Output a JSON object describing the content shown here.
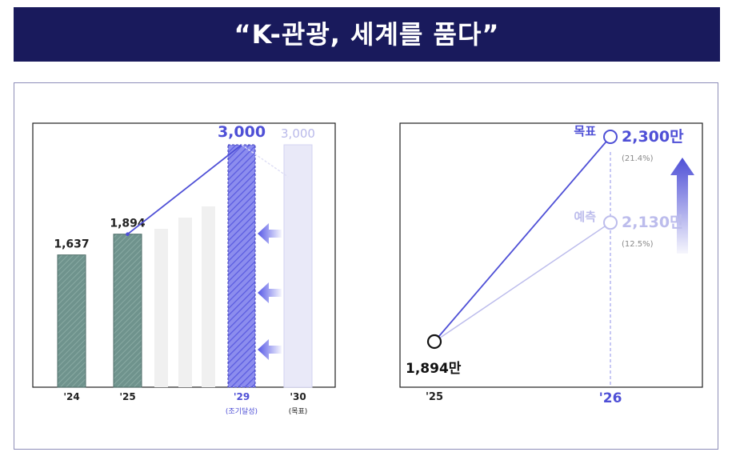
{
  "banner": {
    "title": "“K-관광, 세계를 품다”"
  },
  "colors": {
    "navy": "#191a5c",
    "accent": "#4e4fd6",
    "actual_bar": "#6f938d",
    "projection_bar": "#f0f0f0",
    "target_bar": "#e9e9f8",
    "forecast": "#bcbcec",
    "arrow": "#5557e6"
  },
  "chart_data": [
    {
      "type": "bar",
      "categories": [
        "'24",
        "'25",
        "",
        "",
        "",
        "'29",
        "'30"
      ],
      "category_notes": {
        "'29": "(조기달성)",
        "'30": "(목표)"
      },
      "values": [
        1637,
        1894,
        null,
        null,
        null,
        3000,
        3000
      ],
      "value_labels": [
        "1,637",
        "1,894",
        "",
        "",
        "",
        "3,000",
        "3,000"
      ],
      "intermediate_projection_bars": "unlabeled bars between '25 and '29",
      "trend_line": {
        "from": "'25",
        "to": "'29"
      },
      "ylim": [
        0,
        3400
      ],
      "legend": "none",
      "grid": false
    },
    {
      "type": "line",
      "x": [
        "'25",
        "'26"
      ],
      "series": [
        {
          "name": "목표",
          "values": [
            1894,
            2300
          ],
          "end_label": "2,300만",
          "share": "(21.4%)"
        },
        {
          "name": "예측",
          "values": [
            1894,
            2130
          ],
          "end_label": "2,130만",
          "share": "(12.5%)"
        }
      ],
      "start_label": "1,894만",
      "ylim": [
        1800,
        2400
      ],
      "grid": false
    }
  ]
}
